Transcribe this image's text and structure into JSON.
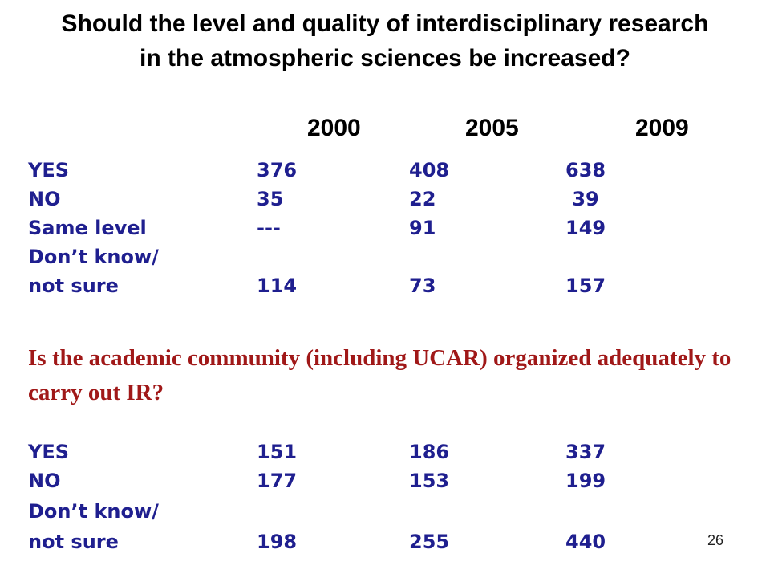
{
  "title": "Should the level and quality of interdisciplinary research in the atmospheric sciences be increased?",
  "years": [
    "2000",
    "2005",
    "2009"
  ],
  "table1": {
    "rows": [
      {
        "label": "YES",
        "v2000": "376",
        "v2005": "408",
        "v2009": "638"
      },
      {
        "label": "NO",
        "v2000": "35",
        "v2005": "22",
        "v2009": " 39"
      },
      {
        "label": "Same level",
        "v2000": "---",
        "v2005": "91",
        "v2009": "149"
      },
      {
        "label": "Don’t know/",
        "v2000": "",
        "v2005": "",
        "v2009": ""
      },
      {
        "label": "not sure",
        "v2000": "114",
        "v2005": "73",
        "v2009": "157"
      }
    ]
  },
  "question2": "Is the academic community (including UCAR) organized adequately to carry out IR?",
  "table2": {
    "rows": [
      {
        "label": "YES",
        "v2000": "151",
        "v2005": "186",
        "v2009": "337"
      },
      {
        "label": "NO",
        "v2000": "177",
        "v2005": "153",
        "v2009": "199"
      },
      {
        "label": "Don’t know/",
        "v2000": "",
        "v2005": "",
        "v2009": ""
      },
      {
        "label": "not sure",
        "v2000": "198",
        "v2005": "255",
        "v2009": "440"
      }
    ]
  },
  "page_number": "26",
  "colors": {
    "table_text": "#1f1f8f",
    "question_text": "#a01818",
    "title_text": "#000000"
  }
}
